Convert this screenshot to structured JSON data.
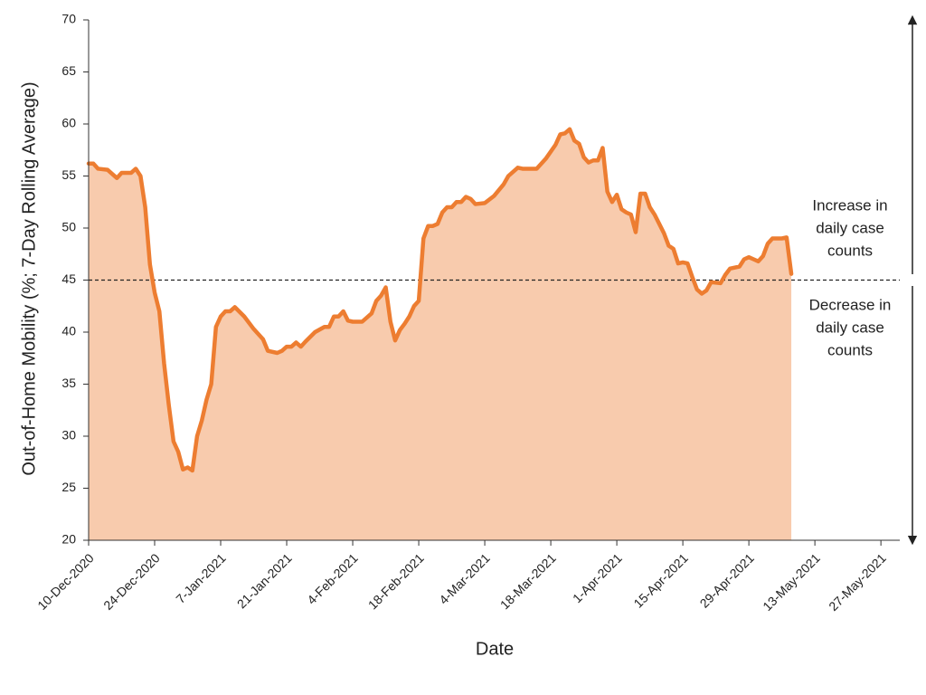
{
  "chart_data": {
    "type": "area",
    "y_label": "Out-of-Home Mobility (%; 7-Day Rolling Average)",
    "x_label": "Date",
    "x": [
      "10-Dec-2020",
      "11-Dec-2020",
      "12-Dec-2020",
      "14-Dec-2020",
      "15-Dec-2020",
      "16-Dec-2020",
      "17-Dec-2020",
      "19-Dec-2020",
      "20-Dec-2020",
      "21-Dec-2020",
      "22-Dec-2020",
      "23-Dec-2020",
      "24-Dec-2020",
      "25-Dec-2020",
      "26-Dec-2020",
      "27-Dec-2020",
      "28-Dec-2020",
      "29-Dec-2020",
      "30-Dec-2020",
      "31-Dec-2020",
      "1-Jan-2021",
      "2-Jan-2021",
      "3-Jan-2021",
      "4-Jan-2021",
      "5-Jan-2021",
      "6-Jan-2021",
      "7-Jan-2021",
      "8-Jan-2021",
      "9-Jan-2021",
      "10-Jan-2021",
      "12-Jan-2021",
      "14-Jan-2021",
      "16-Jan-2021",
      "17-Jan-2021",
      "19-Jan-2021",
      "20-Jan-2021",
      "21-Jan-2021",
      "22-Jan-2021",
      "23-Jan-2021",
      "24-Jan-2021",
      "25-Jan-2021",
      "27-Jan-2021",
      "29-Jan-2021",
      "30-Jan-2021",
      "31-Jan-2021",
      "1-Feb-2021",
      "2-Feb-2021",
      "3-Feb-2021",
      "4-Feb-2021",
      "6-Feb-2021",
      "8-Feb-2021",
      "9-Feb-2021",
      "10-Feb-2021",
      "11-Feb-2021",
      "12-Feb-2021",
      "13-Feb-2021",
      "14-Feb-2021",
      "15-Feb-2021",
      "16-Feb-2021",
      "17-Feb-2021",
      "18-Feb-2021",
      "19-Feb-2021",
      "20-Feb-2021",
      "21-Feb-2021",
      "22-Feb-2021",
      "23-Feb-2021",
      "24-Feb-2021",
      "25-Feb-2021",
      "26-Feb-2021",
      "27-Feb-2021",
      "28-Feb-2021",
      "1-Mar-2021",
      "2-Mar-2021",
      "4-Mar-2021",
      "6-Mar-2021",
      "8-Mar-2021",
      "9-Mar-2021",
      "11-Mar-2021",
      "12-Mar-2021",
      "15-Mar-2021",
      "17-Mar-2021",
      "19-Mar-2021",
      "20-Mar-2021",
      "21-Mar-2021",
      "22-Mar-2021",
      "23-Mar-2021",
      "24-Mar-2021",
      "25-Mar-2021",
      "26-Mar-2021",
      "27-Mar-2021",
      "28-Mar-2021",
      "29-Mar-2021",
      "30-Mar-2021",
      "31-Mar-2021",
      "1-Apr-2021",
      "2-Apr-2021",
      "3-Apr-2021",
      "4-Apr-2021",
      "5-Apr-2021",
      "6-Apr-2021",
      "7-Apr-2021",
      "8-Apr-2021",
      "9-Apr-2021",
      "11-Apr-2021",
      "12-Apr-2021",
      "13-Apr-2021",
      "14-Apr-2021",
      "15-Apr-2021",
      "16-Apr-2021",
      "17-Apr-2021",
      "18-Apr-2021",
      "19-Apr-2021",
      "20-Apr-2021",
      "21-Apr-2021",
      "23-Apr-2021",
      "24-Apr-2021",
      "25-Apr-2021",
      "26-Apr-2021",
      "27-Apr-2021",
      "28-Apr-2021",
      "29-Apr-2021",
      "30-Apr-2021",
      "1-May-2021",
      "2-May-2021",
      "3-May-2021",
      "4-May-2021",
      "6-May-2021",
      "7-May-2021",
      "8-May-2021"
    ],
    "values": [
      56.2,
      56.2,
      55.7,
      55.6,
      55.2,
      54.8,
      55.3,
      55.3,
      55.7,
      55.0,
      52,
      46.5,
      43.8,
      42,
      37,
      33,
      29.5,
      28.5,
      26.8,
      27,
      26.7,
      30,
      31.5,
      33.5,
      35,
      40.5,
      41.5,
      42,
      42,
      42.4,
      41.5,
      40.3,
      39.3,
      38.2,
      38,
      38.2,
      38.6,
      38.6,
      39,
      38.6,
      39.1,
      40,
      40.5,
      40.5,
      41.5,
      41.5,
      42,
      41.1,
      41,
      41,
      41.8,
      43,
      43.5,
      44.3,
      41,
      39.2,
      40.2,
      40.8,
      41.5,
      42.5,
      43,
      49,
      50.2,
      50.2,
      50.4,
      51.5,
      52,
      52,
      52.5,
      52.5,
      53,
      52.8,
      52.3,
      52.4,
      53.1,
      54.2,
      55,
      55.8,
      55.7,
      55.7,
      56.7,
      58,
      59,
      59.1,
      59.5,
      58.4,
      58.1,
      56.8,
      56.3,
      56.5,
      56.5,
      57.7,
      53.5,
      52.5,
      53.2,
      51.8,
      51.5,
      51.3,
      49.6,
      53.3,
      53.3,
      52,
      51.3,
      49.5,
      48.3,
      48,
      46.6,
      46.7,
      46.6,
      45.3,
      44.1,
      43.7,
      44,
      44.8,
      44.7,
      45.5,
      46.1,
      46.2,
      46.3,
      47,
      47.2,
      47,
      46.8,
      47.3,
      48.5,
      49,
      49,
      49.1,
      45.6
    ],
    "color": "#ed7d31",
    "fill_color": "#f8cbad",
    "xlim": [
      "10-Dec-2020",
      "31-May-2021"
    ],
    "xticks": [
      "10-Dec-2020",
      "24-Dec-2020",
      "7-Jan-2021",
      "21-Jan-2021",
      "4-Feb-2021",
      "18-Feb-2021",
      "4-Mar-2021",
      "18-Mar-2021",
      "1-Apr-2021",
      "15-Apr-2021",
      "29-Apr-2021",
      "13-May-2021",
      "27-May-2021"
    ],
    "ylim": [
      20,
      70
    ],
    "yticks": [
      20,
      25,
      30,
      35,
      40,
      45,
      50,
      55,
      60,
      65,
      70
    ],
    "reference_line": {
      "value": 45
    },
    "annotations": [
      {
        "lines": [
          "Increase in",
          "daily case",
          "counts"
        ]
      },
      {
        "lines": [
          "Decrease in",
          "daily case",
          "counts"
        ]
      }
    ]
  }
}
